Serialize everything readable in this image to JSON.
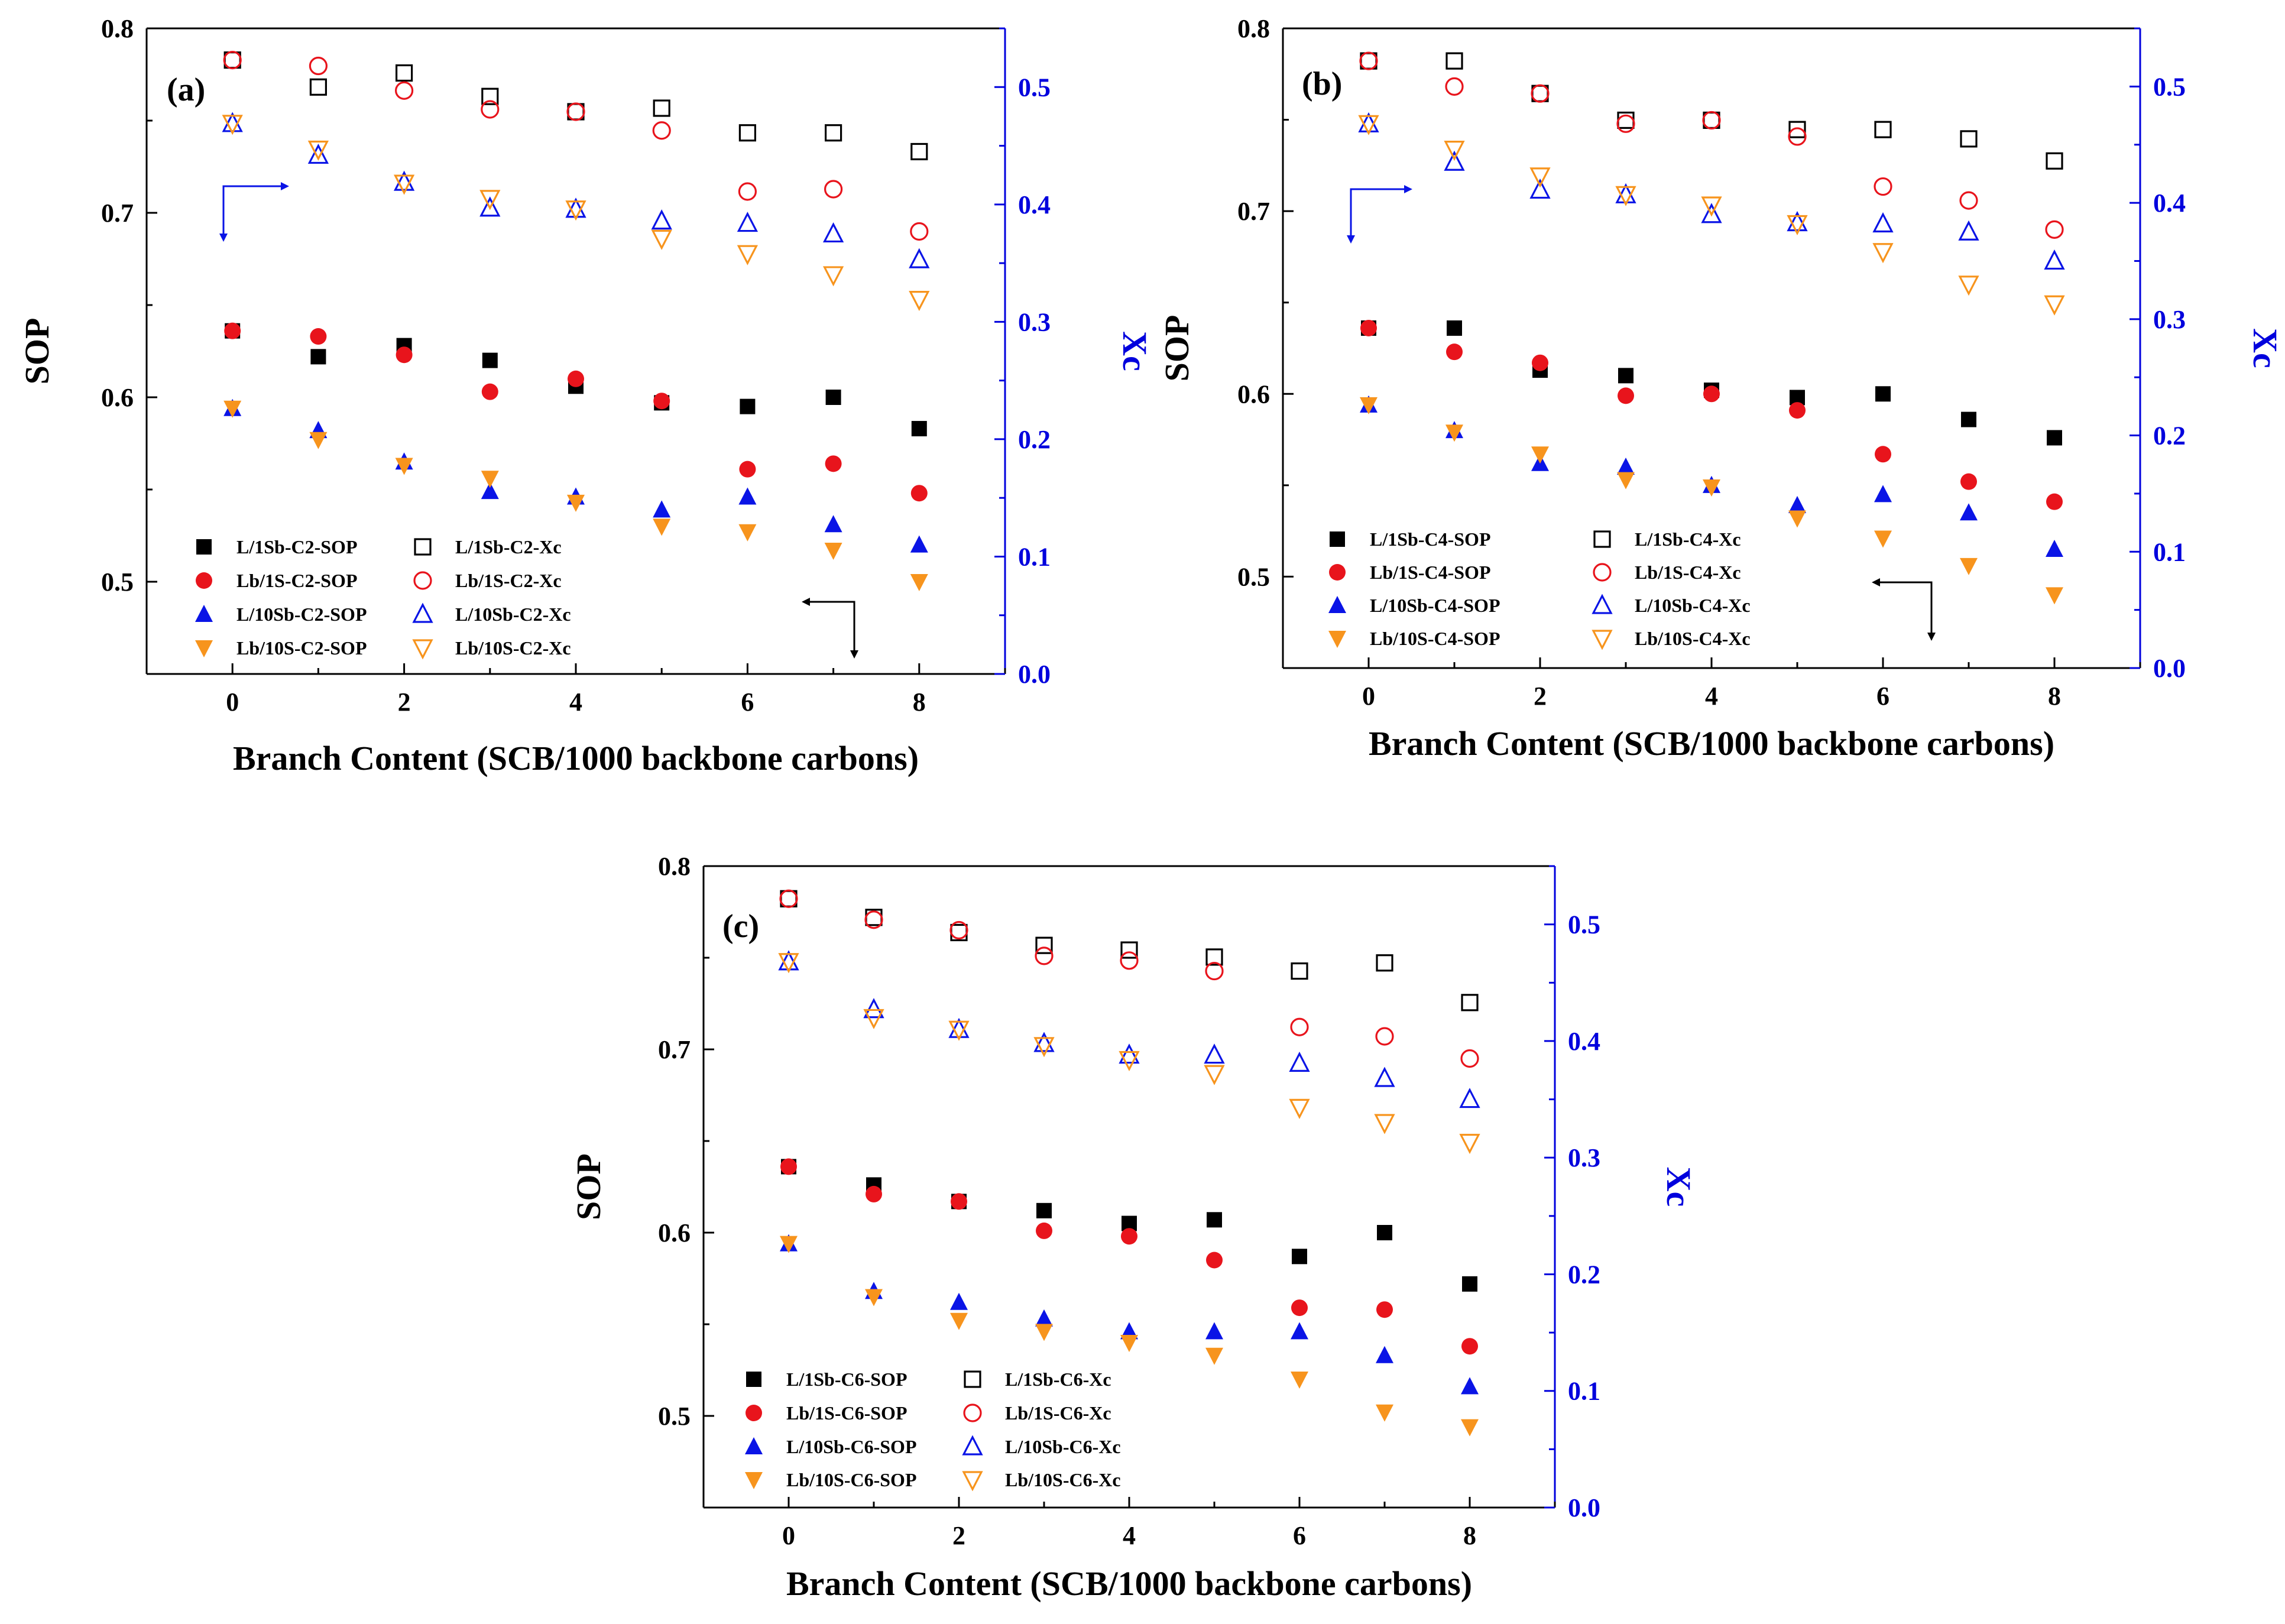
{
  "colors": {
    "black": "#000000",
    "red": "#e8141c",
    "blue": "#0a14e6",
    "orange": "#f7941d",
    "right_axis": "#0000dd"
  },
  "chart_data": [
    {
      "type": "scatter",
      "panel_label": "(a)",
      "xlabel": "Branch Content (SCB/1000 backbone carbons)",
      "ylabel_left": "SOP",
      "ylabel_right": "Xc",
      "xlim": [
        -1,
        9
      ],
      "ylim_left": [
        0.45,
        0.8
      ],
      "ylim_right": [
        0.0,
        0.55
      ],
      "xticks": [
        "0",
        "2",
        "4",
        "6",
        "8"
      ],
      "yticks_left": [
        "0.5",
        "0.6",
        "0.7",
        "0.8"
      ],
      "yticks_right": [
        "0.0",
        "0.1",
        "0.2",
        "0.3",
        "0.4",
        "0.5"
      ],
      "x": [
        0,
        1,
        2,
        3,
        4,
        5,
        6,
        7,
        8
      ],
      "series": [
        {
          "name": "L/1Sb-C2-SOP",
          "axis": "left",
          "marker": "square",
          "filled": true,
          "color": "black",
          "values": [
            0.636,
            0.622,
            0.628,
            0.62,
            0.606,
            0.597,
            0.595,
            0.6,
            0.583
          ]
        },
        {
          "name": "Lb/1S-C2-SOP",
          "axis": "left",
          "marker": "circle",
          "filled": true,
          "color": "red",
          "values": [
            0.636,
            0.633,
            0.623,
            0.603,
            0.61,
            0.598,
            0.561,
            0.564,
            0.548
          ]
        },
        {
          "name": "L/10Sb-C2-SOP",
          "axis": "left",
          "marker": "triangle-up",
          "filled": true,
          "color": "blue",
          "values": [
            0.594,
            0.582,
            0.565,
            0.549,
            0.546,
            0.539,
            0.546,
            0.531,
            0.52
          ]
        },
        {
          "name": "Lb/10S-C2-SOP",
          "axis": "left",
          "marker": "triangle-down",
          "filled": true,
          "color": "orange",
          "values": [
            0.594,
            0.577,
            0.563,
            0.556,
            0.543,
            0.53,
            0.527,
            0.517,
            0.5
          ]
        },
        {
          "name": "L/1Sb-C2-Xc",
          "axis": "right",
          "marker": "square",
          "filled": false,
          "color": "black",
          "values": [
            0.523,
            0.5,
            0.512,
            0.492,
            0.479,
            0.482,
            0.461,
            0.461,
            0.445
          ]
        },
        {
          "name": "Lb/1S-C2-Xc",
          "axis": "right",
          "marker": "circle",
          "filled": false,
          "color": "red",
          "values": [
            0.523,
            0.518,
            0.497,
            0.481,
            0.479,
            0.463,
            0.411,
            0.413,
            0.377
          ]
        },
        {
          "name": "L/10Sb-C2-Xc",
          "axis": "right",
          "marker": "triangle-up",
          "filled": false,
          "color": "blue",
          "values": [
            0.469,
            0.442,
            0.419,
            0.397,
            0.396,
            0.386,
            0.384,
            0.375,
            0.353
          ]
        },
        {
          "name": "Lb/10S-C2-Xc",
          "axis": "right",
          "marker": "triangle-down",
          "filled": false,
          "color": "orange",
          "values": [
            0.469,
            0.447,
            0.418,
            0.405,
            0.396,
            0.371,
            0.358,
            0.34,
            0.319
          ]
        }
      ]
    },
    {
      "type": "scatter",
      "panel_label": "(b)",
      "xlabel": "Branch Content (SCB/1000 backbone carbons)",
      "ylabel_left": "SOP",
      "ylabel_right": "Xc",
      "xlim": [
        -1,
        9
      ],
      "ylim_left": [
        0.45,
        0.8
      ],
      "ylim_right": [
        0.0,
        0.55
      ],
      "xticks": [
        "0",
        "2",
        "4",
        "6",
        "8"
      ],
      "yticks_left": [
        "0.5",
        "0.6",
        "0.7",
        "0.8"
      ],
      "yticks_right": [
        "0.0",
        "0.1",
        "0.2",
        "0.3",
        "0.4",
        "0.5"
      ],
      "x": [
        0,
        1,
        2,
        3,
        4,
        5,
        6,
        7,
        8
      ],
      "series": [
        {
          "name": "L/1Sb-C4-SOP",
          "axis": "left",
          "marker": "square",
          "filled": true,
          "color": "black",
          "values": [
            0.636,
            0.636,
            0.613,
            0.61,
            0.602,
            0.598,
            0.6,
            0.586,
            0.576
          ]
        },
        {
          "name": "Lb/1S-C4-SOP",
          "axis": "left",
          "marker": "circle",
          "filled": true,
          "color": "red",
          "values": [
            0.636,
            0.623,
            0.617,
            0.599,
            0.6,
            0.591,
            0.567,
            0.552,
            0.541
          ]
        },
        {
          "name": "L/10Sb-C4-SOP",
          "axis": "left",
          "marker": "triangle-up",
          "filled": true,
          "color": "blue",
          "values": [
            0.594,
            0.58,
            0.562,
            0.56,
            0.55,
            0.539,
            0.545,
            0.535,
            0.515
          ]
        },
        {
          "name": "Lb/10S-C4-SOP",
          "axis": "left",
          "marker": "triangle-down",
          "filled": true,
          "color": "orange",
          "values": [
            0.594,
            0.579,
            0.567,
            0.553,
            0.549,
            0.532,
            0.521,
            0.506,
            0.49
          ]
        },
        {
          "name": "L/1Sb-C4-Xc",
          "axis": "right",
          "marker": "square",
          "filled": false,
          "color": "black",
          "values": [
            0.522,
            0.522,
            0.494,
            0.471,
            0.471,
            0.463,
            0.463,
            0.455,
            0.436
          ]
        },
        {
          "name": "Lb/1S-C4-Xc",
          "axis": "right",
          "marker": "circle",
          "filled": false,
          "color": "red",
          "values": [
            0.522,
            0.5,
            0.494,
            0.468,
            0.471,
            0.457,
            0.414,
            0.402,
            0.377
          ]
        },
        {
          "name": "L/10Sb-C4-Xc",
          "axis": "right",
          "marker": "triangle-up",
          "filled": false,
          "color": "blue",
          "values": [
            0.468,
            0.435,
            0.411,
            0.407,
            0.39,
            0.383,
            0.382,
            0.375,
            0.35
          ]
        },
        {
          "name": "Lb/10S-C4-Xc",
          "axis": "right",
          "marker": "triangle-down",
          "filled": false,
          "color": "orange",
          "values": [
            0.468,
            0.446,
            0.423,
            0.407,
            0.398,
            0.382,
            0.358,
            0.33,
            0.313
          ]
        }
      ]
    },
    {
      "type": "scatter",
      "panel_label": "(c)",
      "xlabel": "Branch Content (SCB/1000 backbone carbons)",
      "ylabel_left": "SOP",
      "ylabel_right": "Xc",
      "xlim": [
        -1,
        9
      ],
      "ylim_left": [
        0.45,
        0.8
      ],
      "ylim_right": [
        0.0,
        0.55
      ],
      "xticks": [
        "0",
        "2",
        "4",
        "6",
        "8"
      ],
      "yticks_left": [
        "0.5",
        "0.6",
        "0.7",
        "0.8"
      ],
      "yticks_right": [
        "0.0",
        "0.1",
        "0.2",
        "0.3",
        "0.4",
        "0.5"
      ],
      "x": [
        0,
        1,
        2,
        3,
        4,
        5,
        6,
        7,
        8
      ],
      "series": [
        {
          "name": "L/1Sb-C6-SOP",
          "axis": "left",
          "marker": "square",
          "filled": true,
          "color": "black",
          "values": [
            0.636,
            0.626,
            0.617,
            0.612,
            0.605,
            0.607,
            0.587,
            0.6,
            0.572
          ]
        },
        {
          "name": "Lb/1S-C6-SOP",
          "axis": "left",
          "marker": "circle",
          "filled": true,
          "color": "red",
          "values": [
            0.636,
            0.621,
            0.617,
            0.601,
            0.598,
            0.585,
            0.559,
            0.558,
            0.538
          ]
        },
        {
          "name": "L/10Sb-C6-SOP",
          "axis": "left",
          "marker": "triangle-up",
          "filled": true,
          "color": "blue",
          "values": [
            0.594,
            0.568,
            0.562,
            0.553,
            0.546,
            0.546,
            0.546,
            0.533,
            0.516
          ]
        },
        {
          "name": "Lb/10S-C6-SOP",
          "axis": "left",
          "marker": "triangle-down",
          "filled": true,
          "color": "orange",
          "values": [
            0.594,
            0.565,
            0.552,
            0.546,
            0.54,
            0.533,
            0.52,
            0.502,
            0.494
          ]
        },
        {
          "name": "L/1Sb-C6-Xc",
          "axis": "right",
          "marker": "square",
          "filled": false,
          "color": "black",
          "values": [
            0.522,
            0.506,
            0.493,
            0.482,
            0.478,
            0.472,
            0.46,
            0.467,
            0.433
          ]
        },
        {
          "name": "Lb/1S-C6-Xc",
          "axis": "right",
          "marker": "circle",
          "filled": false,
          "color": "red",
          "values": [
            0.522,
            0.504,
            0.495,
            0.473,
            0.469,
            0.46,
            0.412,
            0.404,
            0.385
          ]
        },
        {
          "name": "L/10Sb-C6-Xc",
          "axis": "right",
          "marker": "triangle-up",
          "filled": false,
          "color": "blue",
          "values": [
            0.468,
            0.427,
            0.41,
            0.398,
            0.388,
            0.388,
            0.381,
            0.368,
            0.35
          ]
        },
        {
          "name": "Lb/10S-C6-Xc",
          "axis": "right",
          "marker": "triangle-down",
          "filled": false,
          "color": "orange",
          "values": [
            0.468,
            0.42,
            0.41,
            0.396,
            0.384,
            0.372,
            0.343,
            0.33,
            0.313
          ]
        }
      ]
    }
  ]
}
